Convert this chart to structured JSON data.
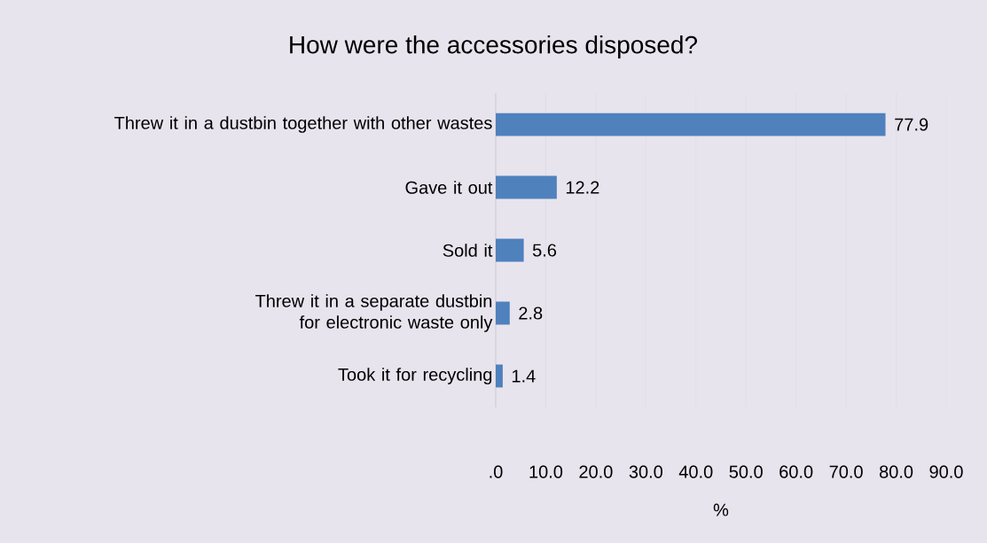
{
  "chart_data": {
    "type": "bar",
    "orientation": "horizontal",
    "title": "How were the accessories disposed?",
    "xlabel": "%",
    "categories": [
      "Threw it in a dustbin together with other wastes",
      "Gave it out",
      "Sold it",
      "Threw it in a separate dustbin for electronic waste only",
      "Took it for recycling"
    ],
    "values": [
      77.9,
      12.2,
      5.6,
      2.8,
      1.4
    ],
    "color": "#4f81bd",
    "xlim": [
      0,
      90
    ],
    "xticks": [
      {
        "value": 0,
        "label": ".0"
      },
      {
        "value": 10,
        "label": "10.0"
      },
      {
        "value": 20,
        "label": "20.0"
      },
      {
        "value": 30,
        "label": "30.0"
      },
      {
        "value": 40,
        "label": "40.0"
      },
      {
        "value": 50,
        "label": "50.0"
      },
      {
        "value": 60,
        "label": "60.0"
      },
      {
        "value": 70,
        "label": "70.0"
      },
      {
        "value": 80,
        "label": "80.0"
      },
      {
        "value": 90,
        "label": "90.0"
      }
    ],
    "grid": "x",
    "data_labels": true
  }
}
